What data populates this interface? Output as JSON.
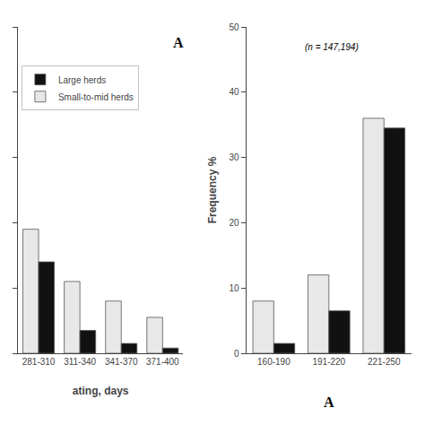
{
  "chart_data": [
    {
      "type": "bar",
      "x_label": "ating, days",
      "categories": [
        "281-310",
        "311-340",
        "341-370",
        "371-400"
      ],
      "series": [
        {
          "name": "Small-to-mid herds",
          "color": "#e8e8e8",
          "values": [
            19.0,
            11.0,
            8.0,
            5.5
          ]
        },
        {
          "name": "Large herds",
          "color": "#111111",
          "values": [
            14.0,
            3.5,
            1.5,
            0.8
          ]
        }
      ],
      "ylim": [
        0,
        50
      ],
      "yticks": [
        0,
        10,
        20,
        30,
        40,
        50
      ],
      "tick_labels": "x",
      "grid": false,
      "legend": "upper left",
      "annotations": [
        "A"
      ]
    },
    {
      "type": "bar",
      "y_label": "Frequency %",
      "categories": [
        "160-190",
        "191-220",
        "221-250"
      ],
      "series": [
        {
          "name": "Small-to-mid herds",
          "color": "#e8e8e8",
          "values": [
            8.0,
            12.0,
            36.0
          ]
        },
        {
          "name": "Large herds",
          "color": "#111111",
          "values": [
            1.5,
            6.5,
            34.5
          ]
        }
      ],
      "ylim": [
        0,
        50
      ],
      "yticks": [
        0,
        10,
        20,
        30,
        40,
        50
      ],
      "grid": false,
      "annotations": [
        "(n = 147,194)",
        "A"
      ]
    }
  ]
}
